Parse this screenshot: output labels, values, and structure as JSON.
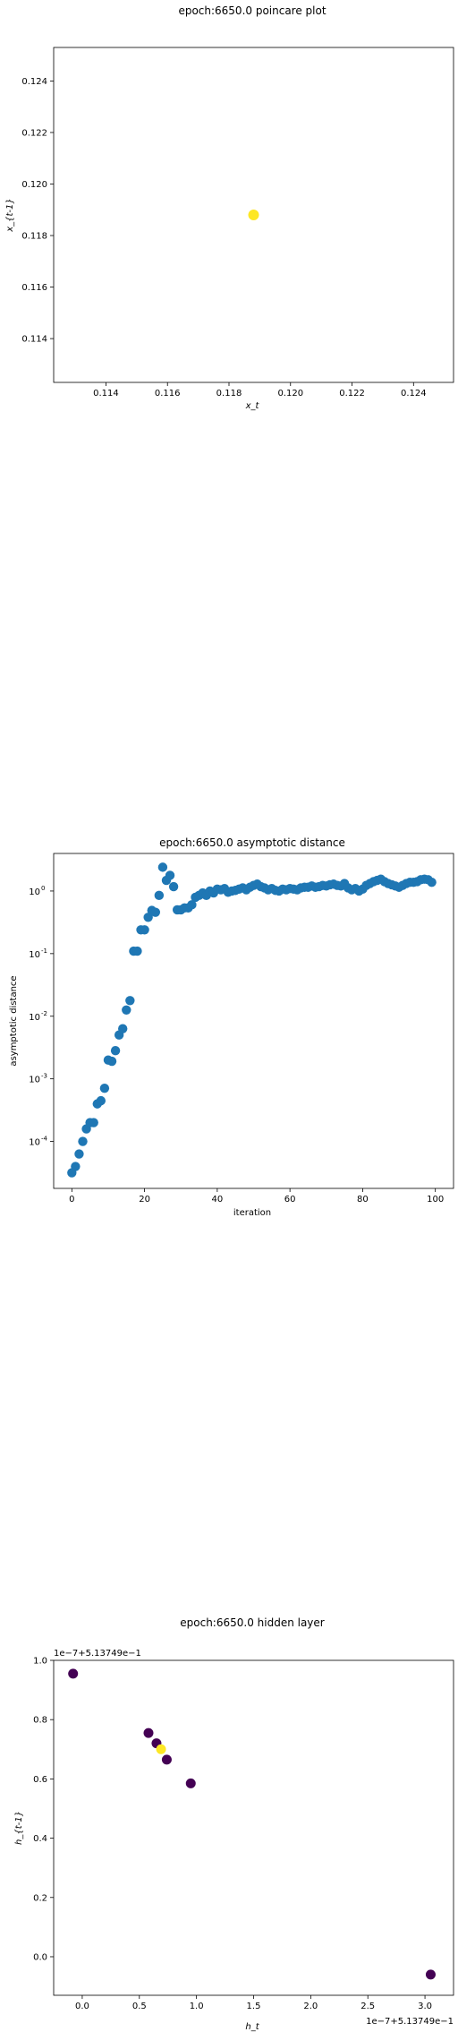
{
  "chart_data": [
    {
      "type": "scatter",
      "title": "epoch:6650.0 poincare plot",
      "xlabel": "x_t",
      "ylabel": "x_{t-1}",
      "xlim": [
        0.1123,
        0.1253
      ],
      "ylim": [
        0.1123,
        0.1253
      ],
      "xticks": [
        "0.114",
        "0.116",
        "0.118",
        "0.120",
        "0.122",
        "0.124"
      ],
      "yticks": [
        "0.114",
        "0.116",
        "0.118",
        "0.120",
        "0.122",
        "0.124"
      ],
      "point_color": "#fde725",
      "points": [
        {
          "x": 0.1188,
          "y": 0.1188
        }
      ]
    },
    {
      "type": "scatter",
      "title": "epoch:6650.0 asymptotic distance",
      "xlabel": "iteration",
      "ylabel": "asymptotic distance",
      "yscale": "log",
      "xlim": [
        -5,
        105
      ],
      "ylim_log10": [
        -4.75,
        0.6
      ],
      "xticks": [
        "0",
        "20",
        "40",
        "60",
        "80",
        "100"
      ],
      "yticks": [
        {
          "label": "10",
          "exp": "-4",
          "value": -4
        },
        {
          "label": "10",
          "exp": "-3",
          "value": -3
        },
        {
          "label": "10",
          "exp": "-2",
          "value": -2
        },
        {
          "label": "10",
          "exp": "-1",
          "value": -1
        },
        {
          "label": "10",
          "exp": "0",
          "value": 0
        }
      ],
      "point_color": "#1f77b4",
      "series": [
        {
          "x": [
            0,
            1,
            2,
            3,
            4,
            5,
            6,
            7,
            8,
            9,
            10,
            11,
            12,
            13,
            14,
            15,
            16,
            17,
            18,
            19,
            20,
            21,
            22,
            23,
            24,
            25,
            26,
            27,
            28,
            29,
            30,
            31,
            32,
            33,
            34,
            35,
            36,
            37,
            38,
            39,
            40,
            41,
            42,
            43,
            44,
            45,
            46,
            47,
            48,
            49,
            50,
            51,
            52,
            53,
            54,
            55,
            56,
            57,
            58,
            59,
            60,
            61,
            62,
            63,
            64,
            65,
            66,
            67,
            68,
            69,
            70,
            71,
            72,
            73,
            74,
            75,
            76,
            77,
            78,
            79,
            80,
            81,
            82,
            83,
            84,
            85,
            86,
            87,
            88,
            89,
            90,
            91,
            92,
            93,
            94,
            95,
            96,
            97,
            98,
            99
          ],
          "log10_y": [
            -4.5,
            -4.4,
            -4.2,
            -4.0,
            -3.8,
            -3.7,
            -3.7,
            -3.4,
            -3.35,
            -3.15,
            -2.7,
            -2.72,
            -2.55,
            -2.3,
            -2.2,
            -1.9,
            -1.75,
            -0.96,
            -0.96,
            -0.62,
            -0.62,
            -0.42,
            -0.31,
            -0.34,
            -0.07,
            0.38,
            0.17,
            0.25,
            0.07,
            -0.3,
            -0.3,
            -0.27,
            -0.27,
            -0.22,
            -0.1,
            -0.07,
            -0.03,
            -0.07,
            0.0,
            -0.03,
            0.03,
            0.02,
            0.04,
            -0.02,
            0.0,
            0.01,
            0.03,
            0.05,
            0.02,
            0.06,
            0.09,
            0.11,
            0.07,
            0.05,
            0.02,
            0.04,
            0.01,
            0.0,
            0.03,
            0.02,
            0.04,
            0.03,
            0.02,
            0.05,
            0.06,
            0.06,
            0.08,
            0.06,
            0.07,
            0.09,
            0.08,
            0.1,
            0.11,
            0.09,
            0.08,
            0.12,
            0.05,
            0.02,
            0.04,
            0.0,
            0.03,
            0.09,
            0.12,
            0.15,
            0.17,
            0.19,
            0.15,
            0.12,
            0.1,
            0.08,
            0.06,
            0.09,
            0.12,
            0.14,
            0.14,
            0.15,
            0.18,
            0.19,
            0.18,
            0.14
          ]
        }
      ]
    },
    {
      "type": "scatter",
      "title": "epoch:6650.0 hidden layer",
      "xlabel": "h_t",
      "ylabel": "h_{t-1}",
      "x_offset_label": "1e−7+5.13749e−1",
      "y_offset_label": "1e−7+5.13749e−1",
      "xlim": [
        -0.25,
        3.25
      ],
      "ylim": [
        -0.13,
        1.0
      ],
      "xticks": [
        "0.0",
        "0.5",
        "1.0",
        "1.5",
        "2.0",
        "2.5",
        "3.0"
      ],
      "yticks": [
        "0.0",
        "0.2",
        "0.4",
        "0.6",
        "0.8",
        "1.0"
      ],
      "colormap": "viridis",
      "points": [
        {
          "x": -0.08,
          "y": 0.955,
          "color": "#440154"
        },
        {
          "x": 0.58,
          "y": 0.755,
          "color": "#440154"
        },
        {
          "x": 0.65,
          "y": 0.72,
          "color": "#440154"
        },
        {
          "x": 0.74,
          "y": 0.665,
          "color": "#440154"
        },
        {
          "x": 0.95,
          "y": 0.585,
          "color": "#440154"
        },
        {
          "x": 3.05,
          "y": -0.06,
          "color": "#440154"
        },
        {
          "x": 0.69,
          "y": 0.7,
          "color": "#fde725"
        }
      ]
    }
  ]
}
